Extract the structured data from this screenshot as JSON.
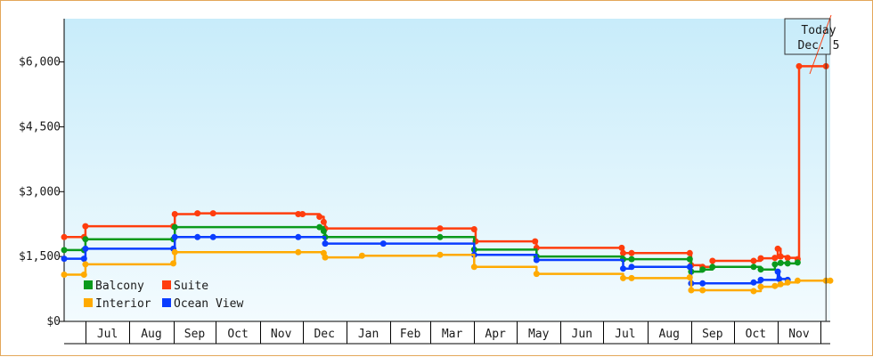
{
  "chart_data": {
    "type": "line",
    "step": true,
    "x_start": "2024-06-16",
    "x_end": "2025-12-08",
    "ylim": [
      0,
      7000
    ],
    "yticks": [
      {
        "value": 0,
        "label": "$0"
      },
      {
        "value": 1500,
        "label": "$1,500"
      },
      {
        "value": 3000,
        "label": "$3,000"
      },
      {
        "value": 4500,
        "label": "$4,500"
      },
      {
        "value": 6000,
        "label": "$6,000"
      }
    ],
    "months": [
      {
        "label": "Jul",
        "start": "2024-07-01",
        "end": "2024-08-01"
      },
      {
        "label": "Aug",
        "start": "2024-08-01",
        "end": "2024-09-01"
      },
      {
        "label": "Sep",
        "start": "2024-09-01",
        "end": "2024-10-01"
      },
      {
        "label": "Oct",
        "start": "2024-10-01",
        "end": "2024-11-01"
      },
      {
        "label": "Nov",
        "start": "2024-11-01",
        "end": "2024-12-01"
      },
      {
        "label": "Dec",
        "start": "2024-12-01",
        "end": "2025-01-01"
      },
      {
        "label": "Jan",
        "start": "2025-01-01",
        "end": "2025-02-01"
      },
      {
        "label": "Feb",
        "start": "2025-02-01",
        "end": "2025-03-01"
      },
      {
        "label": "Mar",
        "start": "2025-03-01",
        "end": "2025-04-01"
      },
      {
        "label": "Apr",
        "start": "2025-04-01",
        "end": "2025-05-01"
      },
      {
        "label": "May",
        "start": "2025-05-01",
        "end": "2025-06-01"
      },
      {
        "label": "Jun",
        "start": "2025-06-01",
        "end": "2025-07-01"
      },
      {
        "label": "Jul",
        "start": "2025-07-01",
        "end": "2025-08-01"
      },
      {
        "label": "Aug",
        "start": "2025-08-01",
        "end": "2025-09-01"
      },
      {
        "label": "Sep",
        "start": "2025-09-01",
        "end": "2025-10-01"
      },
      {
        "label": "Oct",
        "start": "2025-10-01",
        "end": "2025-11-01"
      },
      {
        "label": "Nov",
        "start": "2025-11-01",
        "end": "2025-12-01"
      }
    ],
    "today": {
      "date": "2025-12-05",
      "line1": "Today",
      "line2": "Dec. 5"
    },
    "legend": {
      "placement": "bottom-left"
    },
    "series": [
      {
        "name": "Suite",
        "color": "#ff3d0d",
        "points": [
          [
            "2024-06-16",
            1950
          ],
          [
            "2024-06-30",
            1950
          ],
          [
            "2024-07-01",
            2200
          ],
          [
            "2024-09-01",
            2200
          ],
          [
            "2024-09-02",
            2480
          ],
          [
            "2024-09-18",
            2500
          ],
          [
            "2024-09-29",
            2500
          ],
          [
            "2024-11-28",
            2480
          ],
          [
            "2024-12-01",
            2480
          ],
          [
            "2024-12-13",
            2420
          ],
          [
            "2024-12-16",
            2300
          ],
          [
            "2024-12-17",
            2150
          ],
          [
            "2025-03-08",
            2150
          ],
          [
            "2025-04-01",
            2130
          ],
          [
            "2025-04-02",
            1850
          ],
          [
            "2025-05-14",
            1850
          ],
          [
            "2025-05-15",
            1700
          ],
          [
            "2025-07-14",
            1700
          ],
          [
            "2025-07-15",
            1580
          ],
          [
            "2025-07-21",
            1580
          ],
          [
            "2025-08-31",
            1580
          ],
          [
            "2025-09-01",
            1300
          ],
          [
            "2025-09-09",
            1260
          ],
          [
            "2025-09-16",
            1400
          ],
          [
            "2025-10-15",
            1400
          ],
          [
            "2025-10-20",
            1460
          ],
          [
            "2025-10-30",
            1470
          ],
          [
            "2025-11-01",
            1680
          ],
          [
            "2025-11-03",
            1500
          ],
          [
            "2025-11-08",
            1470
          ],
          [
            "2025-11-15",
            1440
          ],
          [
            "2025-11-16",
            5900
          ],
          [
            "2025-12-05",
            5900
          ]
        ]
      },
      {
        "name": "Balcony",
        "color": "#0a9a1c",
        "points": [
          [
            "2024-06-16",
            1650
          ],
          [
            "2024-06-30",
            1650
          ],
          [
            "2024-07-01",
            1900
          ],
          [
            "2024-09-01",
            1900
          ],
          [
            "2024-09-02",
            2180
          ],
          [
            "2024-12-13",
            2180
          ],
          [
            "2024-12-16",
            2090
          ],
          [
            "2024-12-17",
            1950
          ],
          [
            "2025-03-08",
            1950
          ],
          [
            "2025-04-01",
            1660
          ],
          [
            "2025-05-15",
            1500
          ],
          [
            "2025-07-15",
            1440
          ],
          [
            "2025-07-21",
            1440
          ],
          [
            "2025-08-31",
            1440
          ],
          [
            "2025-09-01",
            1150
          ],
          [
            "2025-09-09",
            1200
          ],
          [
            "2025-09-16",
            1260
          ],
          [
            "2025-10-15",
            1260
          ],
          [
            "2025-10-20",
            1200
          ],
          [
            "2025-10-30",
            1320
          ],
          [
            "2025-11-03",
            1350
          ],
          [
            "2025-11-08",
            1340
          ],
          [
            "2025-11-15",
            1360
          ]
        ]
      },
      {
        "name": "Ocean View",
        "color": "#0a3dff",
        "points": [
          [
            "2024-06-16",
            1450
          ],
          [
            "2024-06-30",
            1450
          ],
          [
            "2024-07-01",
            1680
          ],
          [
            "2024-09-01",
            1680
          ],
          [
            "2024-09-02",
            1950
          ],
          [
            "2024-09-18",
            1950
          ],
          [
            "2024-09-29",
            1950
          ],
          [
            "2024-11-28",
            1950
          ],
          [
            "2024-12-17",
            1800
          ],
          [
            "2025-01-27",
            1800
          ],
          [
            "2025-04-01",
            1540
          ],
          [
            "2025-05-15",
            1420
          ],
          [
            "2025-07-15",
            1220
          ],
          [
            "2025-07-21",
            1260
          ],
          [
            "2025-08-31",
            1260
          ],
          [
            "2025-09-01",
            880
          ],
          [
            "2025-09-09",
            880
          ],
          [
            "2025-10-15",
            900
          ],
          [
            "2025-10-20",
            960
          ],
          [
            "2025-11-01",
            1150
          ],
          [
            "2025-11-02",
            980
          ],
          [
            "2025-11-08",
            960
          ]
        ]
      },
      {
        "name": "Interior",
        "color": "#ffaa00",
        "points": [
          [
            "2024-06-16",
            1080
          ],
          [
            "2024-06-30",
            1080
          ],
          [
            "2024-07-01",
            1320
          ],
          [
            "2024-09-01",
            1340
          ],
          [
            "2024-09-02",
            1600
          ],
          [
            "2024-11-28",
            1600
          ],
          [
            "2024-12-16",
            1580
          ],
          [
            "2024-12-17",
            1480
          ],
          [
            "2025-01-12",
            1520
          ],
          [
            "2025-03-08",
            1540
          ],
          [
            "2025-04-01",
            1260
          ],
          [
            "2025-05-15",
            1100
          ],
          [
            "2025-07-15",
            1000
          ],
          [
            "2025-07-21",
            1000
          ],
          [
            "2025-08-31",
            1020
          ],
          [
            "2025-09-01",
            720
          ],
          [
            "2025-09-09",
            720
          ],
          [
            "2025-10-15",
            700
          ],
          [
            "2025-10-20",
            800
          ],
          [
            "2025-10-30",
            820
          ],
          [
            "2025-11-03",
            860
          ],
          [
            "2025-11-08",
            900
          ],
          [
            "2025-11-15",
            940
          ],
          [
            "2025-12-05",
            940
          ],
          [
            "2025-12-08",
            940
          ]
        ]
      }
    ],
    "legend_order": [
      "Balcony",
      "Suite",
      "Interior",
      "Ocean View"
    ]
  }
}
